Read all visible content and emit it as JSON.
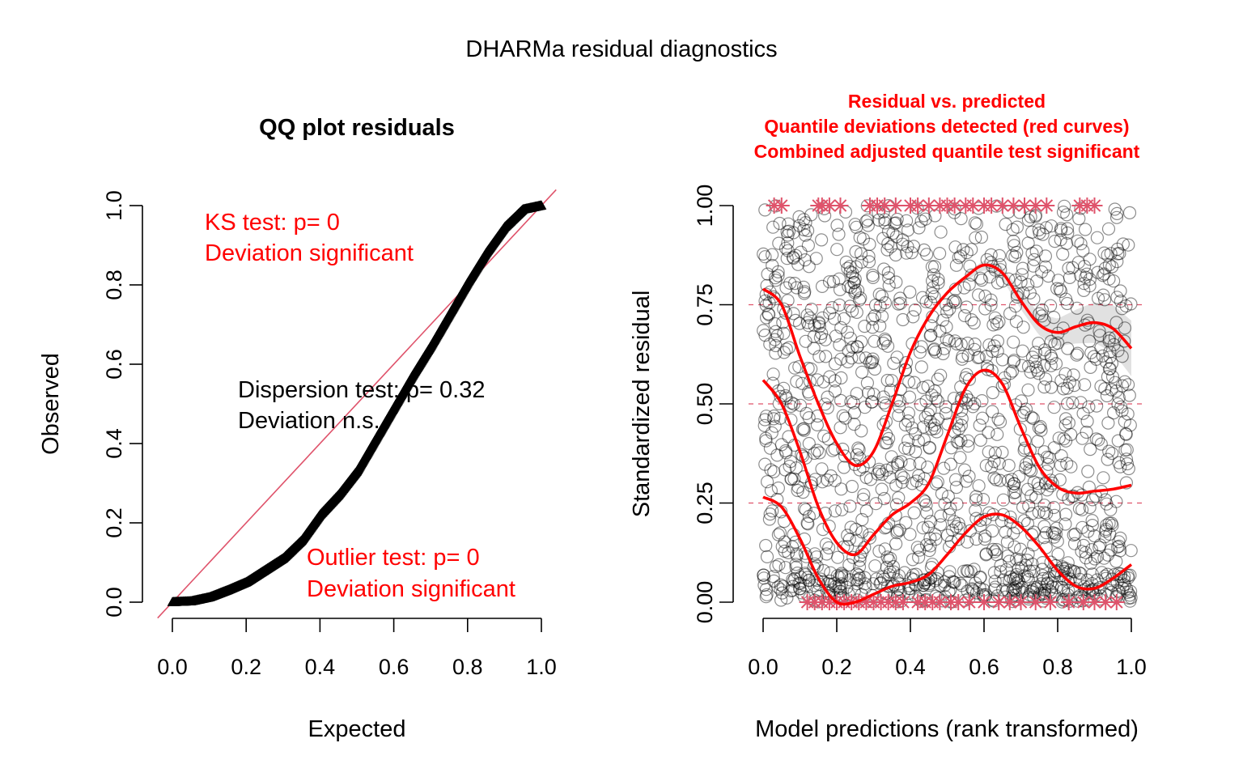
{
  "figure_title": "DHARMa residual diagnostics",
  "colors": {
    "red": "#ff0000",
    "crimson": "#df536b",
    "black": "#000000",
    "grey_band": "#d9d9d9"
  },
  "chart_data": [
    {
      "type": "scatter",
      "title": "QQ plot residuals",
      "xlabel": "Expected",
      "ylabel": "Observed",
      "xlim": [
        0,
        1
      ],
      "ylim": [
        0,
        1
      ],
      "x_ticks": [
        "0.0",
        "0.2",
        "0.4",
        "0.6",
        "0.8",
        "1.0"
      ],
      "y_ticks": [
        "0.0",
        "0.2",
        "0.4",
        "0.6",
        "0.8",
        "1.0"
      ],
      "reference_line": {
        "from": [
          0,
          0
        ],
        "to": [
          1,
          1
        ]
      },
      "series": [
        {
          "x": [
            0.0,
            0.05,
            0.1,
            0.15,
            0.2,
            0.25,
            0.3,
            0.35,
            0.4,
            0.45,
            0.5,
            0.55,
            0.6,
            0.65,
            0.7,
            0.75,
            0.8,
            0.85,
            0.9,
            0.95,
            1.0
          ],
          "y": [
            0.0,
            0.002,
            0.012,
            0.03,
            0.05,
            0.08,
            0.11,
            0.155,
            0.22,
            0.27,
            0.33,
            0.41,
            0.49,
            0.57,
            0.645,
            0.725,
            0.805,
            0.88,
            0.945,
            0.99,
            1.0
          ]
        }
      ],
      "annotations": {
        "ks": [
          "KS test: p= 0",
          "Deviation  significant"
        ],
        "dispersion": [
          "Dispersion test: p= 0.32",
          "Deviation  n.s."
        ],
        "outlier": [
          "Outlier test: p= 0",
          "Deviation  significant"
        ]
      }
    },
    {
      "type": "scatter",
      "title_lines": [
        "Residual vs. predicted",
        "Quantile deviations detected (red curves)",
        "Combined adjusted quantile test significant"
      ],
      "xlabel": "Model predictions (rank transformed)",
      "ylabel": "Standardized residual",
      "xlim": [
        0,
        1
      ],
      "ylim": [
        0,
        1
      ],
      "x_ticks": [
        "0.0",
        "0.2",
        "0.4",
        "0.6",
        "0.8",
        "1.0"
      ],
      "y_ticks": [
        "0.00",
        "0.25",
        "0.50",
        "0.75",
        "1.00"
      ],
      "reference_quantiles": [
        0.25,
        0.5,
        0.75
      ],
      "quantile_curves": [
        {
          "x": [
            0.0,
            0.05,
            0.1,
            0.15,
            0.2,
            0.25,
            0.3,
            0.35,
            0.4,
            0.45,
            0.5,
            0.55,
            0.6,
            0.65,
            0.7,
            0.75,
            0.8,
            0.85,
            0.9,
            0.95,
            1.0
          ],
          "y": [
            0.265,
            0.24,
            0.16,
            0.06,
            0.0,
            0.0,
            0.02,
            0.04,
            0.05,
            0.07,
            0.12,
            0.175,
            0.215,
            0.22,
            0.19,
            0.14,
            0.08,
            0.04,
            0.035,
            0.06,
            0.095
          ]
        },
        {
          "x": [
            0.0,
            0.05,
            0.1,
            0.15,
            0.2,
            0.25,
            0.3,
            0.35,
            0.4,
            0.45,
            0.5,
            0.55,
            0.6,
            0.65,
            0.7,
            0.75,
            0.8,
            0.85,
            0.9,
            0.95,
            1.0
          ],
          "y": [
            0.56,
            0.5,
            0.38,
            0.24,
            0.15,
            0.12,
            0.17,
            0.22,
            0.25,
            0.3,
            0.42,
            0.54,
            0.585,
            0.55,
            0.44,
            0.34,
            0.29,
            0.275,
            0.28,
            0.285,
            0.295
          ]
        },
        {
          "x": [
            0.0,
            0.05,
            0.1,
            0.15,
            0.2,
            0.25,
            0.3,
            0.35,
            0.4,
            0.45,
            0.5,
            0.55,
            0.6,
            0.65,
            0.7,
            0.75,
            0.8,
            0.85,
            0.9,
            0.95,
            1.0
          ],
          "y": [
            0.79,
            0.75,
            0.62,
            0.5,
            0.4,
            0.345,
            0.38,
            0.5,
            0.63,
            0.72,
            0.78,
            0.82,
            0.85,
            0.83,
            0.76,
            0.7,
            0.68,
            0.695,
            0.705,
            0.69,
            0.64
          ]
        }
      ],
      "outlier_markers": {
        "top": [
          0.03,
          0.05,
          0.15,
          0.16,
          0.18,
          0.21,
          0.29,
          0.31,
          0.33,
          0.36,
          0.4,
          0.42,
          0.45,
          0.48,
          0.5,
          0.52,
          0.55,
          0.57,
          0.6,
          0.62,
          0.65,
          0.68,
          0.71,
          0.74,
          0.77,
          0.86,
          0.88,
          0.9
        ],
        "bottom": [
          0.12,
          0.14,
          0.16,
          0.18,
          0.2,
          0.22,
          0.24,
          0.26,
          0.28,
          0.3,
          0.32,
          0.34,
          0.36,
          0.38,
          0.42,
          0.44,
          0.46,
          0.48,
          0.51,
          0.53,
          0.56,
          0.6,
          0.64,
          0.67,
          0.7,
          0.74,
          0.78,
          0.83,
          0.87,
          0.9,
          0.93,
          0.96
        ]
      },
      "residual_points": {
        "count": 1500,
        "seed": 17
      }
    }
  ]
}
